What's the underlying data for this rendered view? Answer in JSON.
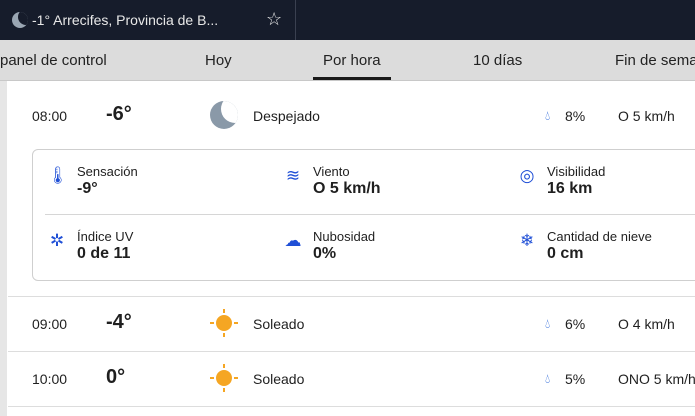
{
  "browser_tab": {
    "title": "-1° Arrecifes, Provincia de B...",
    "icon": "moon-icon"
  },
  "nav": {
    "items": [
      "panel de control",
      "Hoy",
      "Por hora",
      "10 días",
      "Fin de sema"
    ],
    "active": "Por hora"
  },
  "hours": [
    {
      "time": "08:00",
      "temp": "-6°",
      "icon": "moon-icon",
      "condition": "Despejado",
      "precip": "8%",
      "wind": "O 5 km/h"
    },
    {
      "time": "09:00",
      "temp": "-4°",
      "icon": "sun-icon",
      "condition": "Soleado",
      "precip": "6%",
      "wind": "O 4 km/h"
    },
    {
      "time": "10:00",
      "temp": "0°",
      "icon": "sun-icon",
      "condition": "Soleado",
      "precip": "5%",
      "wind": "ONO 5 km/h"
    }
  ],
  "details": [
    {
      "label": "Sensación",
      "value": "-9°",
      "icon": "thermometer-person-icon"
    },
    {
      "label": "Viento",
      "value": "O 5 km/h",
      "icon": "wind-icon"
    },
    {
      "label": "Visibilidad",
      "value": "16 km",
      "icon": "eye-icon"
    },
    {
      "label": "Índice UV",
      "value": "0 de 11",
      "icon": "uv-sun-icon"
    },
    {
      "label": "Nubosidad",
      "value": "0%",
      "icon": "cloud-icon"
    },
    {
      "label": "Cantidad de nieve",
      "value": "0 cm",
      "icon": "snowflake-icon"
    }
  ],
  "colors": {
    "accent": "#1f4fd6",
    "topbar": "#161c2b",
    "sun": "#f5a623"
  }
}
